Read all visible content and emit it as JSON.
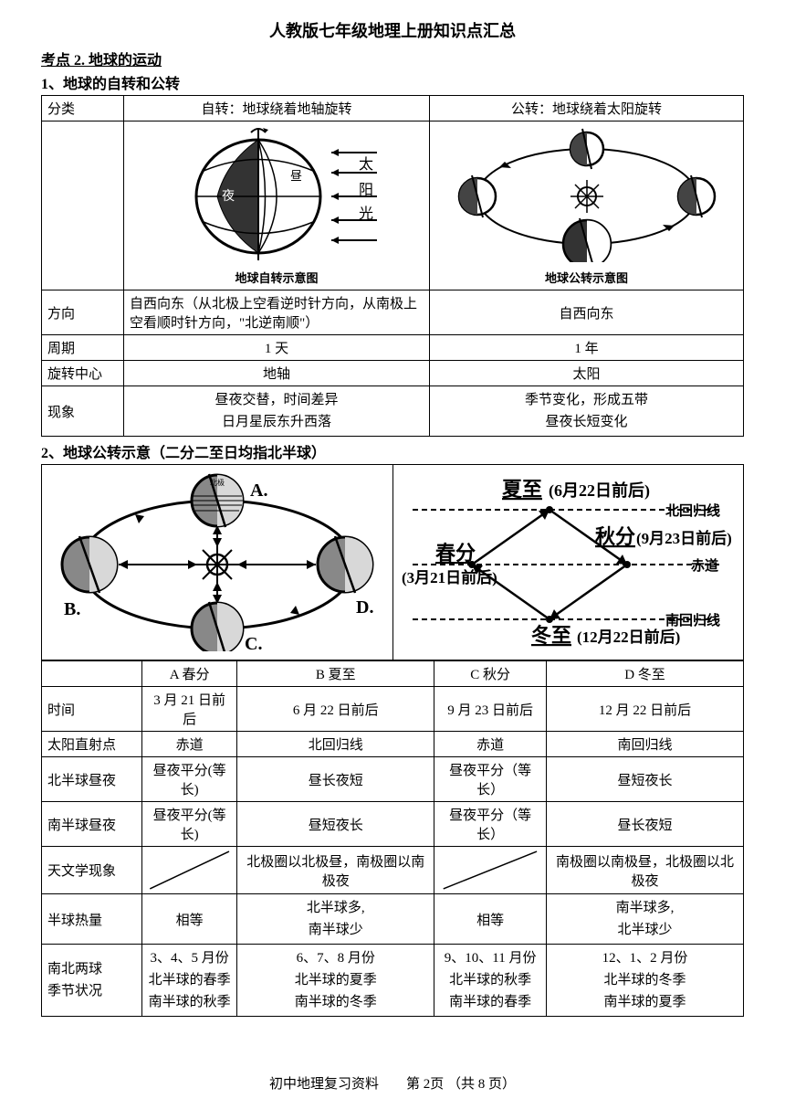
{
  "title": "人教版七年级地理上册知识点汇总",
  "topic": "考点 2.  地球的运动",
  "sub1": "1、地球的自转和公转",
  "table1": {
    "rows": [
      {
        "c0": "分类",
        "c1": "自转：地球绕着地轴旋转",
        "c2": "公转：地球绕着太阳旋转"
      },
      {
        "c0": "方向",
        "c1": "自西向东（从北极上空看逆时针方向，从南极上空看顺时针方向，\"北逆南顺\"）",
        "c2": "自西向东"
      },
      {
        "c0": "周期",
        "c1": "1 天",
        "c2": "1 年"
      },
      {
        "c0": "旋转中心",
        "c1": "地轴",
        "c2": "太阳"
      },
      {
        "c0": "现象",
        "c1": "昼夜交替，时间差异\n日月星辰东升西落",
        "c2": "季节变化，形成五带\n昼夜长短变化"
      }
    ],
    "diag1_caption": "地球自转示意图",
    "diag1_labels": {
      "ye": "夜",
      "tai": "太",
      "yang": "阳",
      "guang": "光",
      "bei": "北极"
    },
    "diag2_caption": "地球公转示意图"
  },
  "sub2": "2、地球公转示意（二分二至日均指北半球）",
  "orbit_labels": {
    "A": "A.",
    "B": "B.",
    "C": "C.",
    "D": "D.",
    "bei": "北极"
  },
  "solstice": {
    "xiazhi": "夏至",
    "xiazhi_date": "(6月22日前后)",
    "qiufen": "秋分",
    "qiufen_date": "(9月23日前后)",
    "chunfen": "春分",
    "chunfen_date": "(3月21日前后)",
    "dongzhi": "冬至",
    "dongzhi_date": "(12月22日前后)",
    "beihuigui": "北回归线",
    "chidao": "赤道",
    "nanhuigui": "南回归线"
  },
  "table2": {
    "headers": [
      "",
      "A 春分",
      "B 夏至",
      "C 秋分",
      "D 冬至"
    ],
    "rows": [
      {
        "k": "时间",
        "a": "3 月 21 日前后",
        "b": "6 月 22 日前后",
        "c": "9 月 23 日前后",
        "d": "12 月 22 日前后"
      },
      {
        "k": "太阳直射点",
        "a": "赤道",
        "b": "北回归线",
        "c": "赤道",
        "d": "南回归线"
      },
      {
        "k": "北半球昼夜",
        "a": "昼夜平分(等长)",
        "b": "昼长夜短",
        "c": "昼夜平分（等长）",
        "d": "昼短夜长"
      },
      {
        "k": "南半球昼夜",
        "a": "昼夜平分(等长)",
        "b": "昼短夜长",
        "c": "昼夜平分（等长）",
        "d": "昼长夜短"
      },
      {
        "k": "天文学现象",
        "a": "SLASH",
        "b": "北极圈以北极昼，南极圈以南极夜",
        "c": "SLASH",
        "d": "南极圈以南极昼，北极圈以北极夜"
      },
      {
        "k": "半球热量",
        "a": "相等",
        "b": "北半球多,\n南半球少",
        "c": "相等",
        "d": "南半球多,\n北半球少"
      },
      {
        "k": "南北两球\n季节状况",
        "a": "3、4、5 月份\n北半球的春季\n南半球的秋季",
        "b": "6、7、8 月份\n北半球的夏季\n南半球的冬季",
        "c": "9、10、11 月份\n北半球的秋季\n南半球的春季",
        "d": "12、1、2 月份\n北半球的冬季\n南半球的夏季"
      }
    ]
  },
  "footer": "初中地理复习资料　　第 2页 （共 8 页）"
}
